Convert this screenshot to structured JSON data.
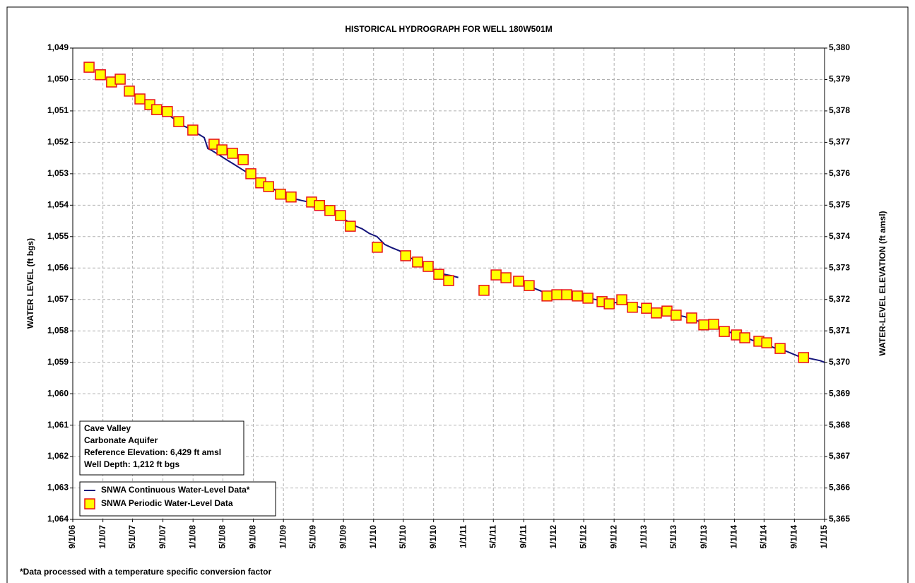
{
  "chart_data": {
    "type": "line",
    "title": "HISTORICAL HYDROGRAPH FOR WELL 180W501M",
    "y_label": "WATER LEVEL (ft bgs)",
    "y2_label": "WATER-LEVEL ELEVATION (ft amsl)",
    "note": "*Data processed with a temperature specific conversion factor",
    "annotations": [
      "Cave Valley",
      "Carbonate Aquifer",
      "Reference Elevation: 6,429 ft amsl",
      "Well Depth: 1,212 ft bgs"
    ],
    "xlim": [
      "9/1/06",
      "1/1/15"
    ],
    "xticks": [
      "9/1/06",
      "1/1/07",
      "5/1/07",
      "9/1/07",
      "1/1/08",
      "5/1/08",
      "9/1/08",
      "1/1/09",
      "5/1/09",
      "9/1/09",
      "1/1/10",
      "5/1/10",
      "9/1/10",
      "1/1/11",
      "5/1/11",
      "9/1/11",
      "1/1/12",
      "5/1/12",
      "9/1/12",
      "1/1/13",
      "5/1/13",
      "9/1/13",
      "1/1/14",
      "5/1/14",
      "9/1/14",
      "1/1/15"
    ],
    "ylim": [
      1049,
      1064
    ],
    "y_inverted": true,
    "yticks": [
      {
        "value": 1049,
        "label": "1,049"
      },
      {
        "value": 1050,
        "label": "1,050"
      },
      {
        "value": 1051,
        "label": "1,051"
      },
      {
        "value": 1052,
        "label": "1,052"
      },
      {
        "value": 1053,
        "label": "1,053"
      },
      {
        "value": 1054,
        "label": "1,054"
      },
      {
        "value": 1055,
        "label": "1,055"
      },
      {
        "value": 1056,
        "label": "1,056"
      },
      {
        "value": 1057,
        "label": "1,057"
      },
      {
        "value": 1058,
        "label": "1,058"
      },
      {
        "value": 1059,
        "label": "1,059"
      },
      {
        "value": 1060,
        "label": "1,060"
      },
      {
        "value": 1061,
        "label": "1,061"
      },
      {
        "value": 1062,
        "label": "1,062"
      },
      {
        "value": 1063,
        "label": "1,063"
      },
      {
        "value": 1064,
        "label": "1,064"
      }
    ],
    "y2lim": [
      5380,
      5365
    ],
    "y2ticks": [
      {
        "value": 5380,
        "label": "5,380"
      },
      {
        "value": 5379,
        "label": "5,379"
      },
      {
        "value": 5378,
        "label": "5,378"
      },
      {
        "value": 5377,
        "label": "5,377"
      },
      {
        "value": 5376,
        "label": "5,376"
      },
      {
        "value": 5375,
        "label": "5,375"
      },
      {
        "value": 5374,
        "label": "5,374"
      },
      {
        "value": 5373,
        "label": "5,373"
      },
      {
        "value": 5372,
        "label": "5,372"
      },
      {
        "value": 5371,
        "label": "5,371"
      },
      {
        "value": 5370,
        "label": "5,370"
      },
      {
        "value": 5369,
        "label": "5,369"
      },
      {
        "value": 5368,
        "label": "5,368"
      },
      {
        "value": 5367,
        "label": "5,367"
      },
      {
        "value": 5366,
        "label": "5,366"
      },
      {
        "value": 5365,
        "label": "5,365"
      }
    ],
    "grid": true,
    "legend": "lower left",
    "series": [
      {
        "name": "SNWA Continuous Water-Level Data*",
        "type": "line",
        "color": "#14147a",
        "x": [
          "9/20/07",
          "10/15/07",
          "11/15/07",
          "12/15/07",
          "1/15/08",
          "2/15/08",
          "3/1/08",
          "3/15/08",
          "4/15/08",
          "5/15/08",
          "6/15/08",
          "7/15/08",
          "8/15/08",
          "9/15/08",
          "10/15/08",
          "11/15/08",
          "12/15/08",
          "1/15/09",
          "2/15/09",
          "3/15/09",
          "4/15/09",
          "5/15/09",
          "6/15/09",
          "7/15/09",
          "8/15/09",
          "9/15/09",
          "10/15/09",
          "11/15/09",
          "12/15/09",
          "1/15/10",
          "2/15/10",
          "3/15/10",
          "4/15/10",
          "5/15/10",
          "6/15/10",
          "7/15/10",
          "8/15/10",
          "9/15/10",
          "10/15/10",
          "11/15/10",
          "12/10/10",
          "3/1/11",
          "8/15/11",
          "9/15/11",
          "10/15/11",
          "11/15/11",
          "12/15/11",
          "1/15/12",
          "2/15/12",
          "3/15/12",
          "4/15/12",
          "5/15/12",
          "6/15/12",
          "7/15/12",
          "8/15/12",
          "9/15/12",
          "10/15/12",
          "11/15/12",
          "12/15/12",
          "1/15/13",
          "2/15/13",
          "3/15/13",
          "4/15/13",
          "5/15/13",
          "6/15/13",
          "7/15/13",
          "8/15/13",
          "9/15/13",
          "10/15/13",
          "11/15/13",
          "12/15/13",
          "1/15/14",
          "2/15/14",
          "3/15/14",
          "4/15/14",
          "5/15/14",
          "6/15/14",
          "7/15/14",
          "8/15/14",
          "9/15/14",
          "10/15/14",
          "11/15/14",
          "12/15/14",
          "12/31/14"
        ],
        "values": [
          1051.1,
          1051.25,
          1051.45,
          1051.55,
          1051.7,
          1051.85,
          1052.2,
          1052.25,
          1052.4,
          1052.55,
          1052.7,
          1052.85,
          1053.0,
          1053.15,
          1053.3,
          1053.45,
          1053.6,
          1053.75,
          1053.8,
          1053.85,
          1053.9,
          1054.0,
          1054.1,
          1054.25,
          1054.35,
          1054.5,
          1054.65,
          1054.75,
          1054.9,
          1055.0,
          1055.25,
          1055.35,
          1055.45,
          1055.6,
          1055.75,
          1055.9,
          1056.0,
          1056.1,
          1056.2,
          1056.25,
          1056.3,
          null,
          1056.45,
          1056.55,
          1056.65,
          1056.75,
          1056.8,
          1056.85,
          1056.85,
          1056.85,
          1056.9,
          1056.95,
          1057.0,
          1057.05,
          1057.1,
          1057.1,
          1057.15,
          1057.2,
          1057.25,
          1057.3,
          1057.35,
          1057.4,
          1057.45,
          1057.5,
          1057.55,
          1057.65,
          1057.7,
          1057.8,
          1057.85,
          1057.95,
          1058.05,
          1058.1,
          1058.2,
          1058.3,
          1058.35,
          1058.45,
          1058.55,
          1058.6,
          1058.7,
          1058.8,
          1058.85,
          1058.9,
          1058.95,
          1059.0
        ]
      },
      {
        "name": "SNWA Periodic Water-Level Data",
        "type": "scatter",
        "color": "#ffff00",
        "edge_color": "#e8101a",
        "x": [
          "11/6/06",
          "12/22/06",
          "2/5/07",
          "3/12/07",
          "4/18/07",
          "5/31/07",
          "7/10/07",
          "8/7/07",
          "9/19/07",
          "11/4/07",
          "12/31/07",
          "3/26/08",
          "4/27/08",
          "6/9/08",
          "7/22/08",
          "8/22/08",
          "10/1/08",
          "11/2/08",
          "12/20/08",
          "2/1/09",
          "4/25/09",
          "5/27/09",
          "7/8/09",
          "8/20/09",
          "9/29/09",
          "1/16/10",
          "5/11/10",
          "6/28/10",
          "8/10/10",
          "9/22/10",
          "11/1/10",
          "3/24/11",
          "5/12/11",
          "6/21/11",
          "8/11/11",
          "9/23/11",
          "12/4/11",
          "1/13/12",
          "2/22/12",
          "4/5/12",
          "5/18/12",
          "7/14/12",
          "8/12/12",
          "10/2/12",
          "11/14/12",
          "1/10/13",
          "2/19/13",
          "4/3/13",
          "5/10/13",
          "7/12/13",
          "8/30/13",
          "10/9/13",
          "11/21/13",
          "1/9/14",
          "2/12/14",
          "4/10/14",
          "5/12/14",
          "7/5/14",
          "10/8/14"
        ],
        "values": [
          1049.61,
          1049.85,
          1050.08,
          1049.99,
          1050.37,
          1050.62,
          1050.8,
          1050.96,
          1051.02,
          1051.34,
          1051.61,
          1052.06,
          1052.24,
          1052.35,
          1052.55,
          1053.0,
          1053.29,
          1053.41,
          1053.65,
          1053.74,
          1053.9,
          1054.01,
          1054.17,
          1054.33,
          1054.67,
          1055.34,
          1055.61,
          1055.81,
          1055.95,
          1056.2,
          1056.4,
          1056.71,
          1056.22,
          1056.31,
          1056.42,
          1056.56,
          1056.89,
          1056.85,
          1056.85,
          1056.89,
          1056.96,
          1057.07,
          1057.14,
          1057.01,
          1057.25,
          1057.28,
          1057.43,
          1057.37,
          1057.5,
          1057.59,
          1057.81,
          1057.79,
          1058.02,
          1058.13,
          1058.22,
          1058.33,
          1058.38,
          1058.56,
          1058.85
        ]
      }
    ]
  }
}
